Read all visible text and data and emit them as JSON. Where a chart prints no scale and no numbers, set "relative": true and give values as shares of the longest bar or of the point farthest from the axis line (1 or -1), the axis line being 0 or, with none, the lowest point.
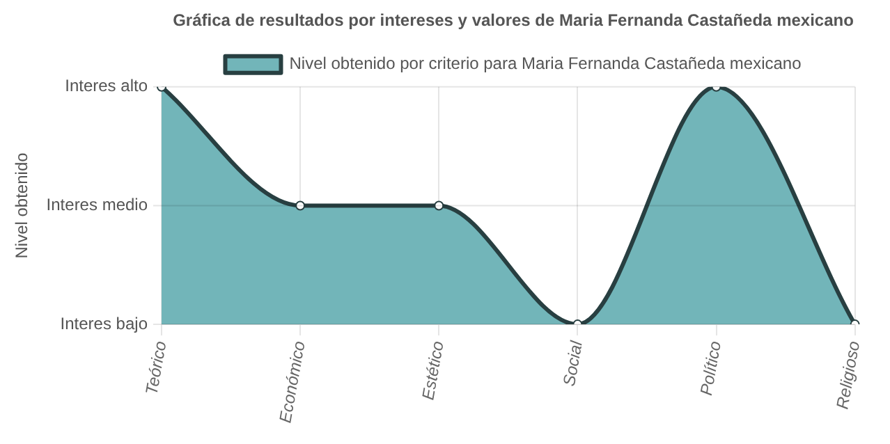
{
  "chart_data": {
    "type": "area",
    "title": "Gráfica de resultados por intereses y valores de Maria Fernanda Castañeda mexicano",
    "categories": [
      "Teórico",
      "Económico",
      "Estético",
      "Social",
      "Político",
      "Religioso"
    ],
    "series": [
      {
        "name": "Nivel obtenido por criterio para Maria Fernanda Castañeda mexicano",
        "color": "#72b5b9",
        "values": [
          1,
          0.5,
          0.5,
          0,
          1,
          0
        ]
      }
    ],
    "relative": true,
    "annotations": [
      "Interes bajo",
      "Interes medio",
      "Interes alto",
      "Nivel obtenido"
    ],
    "grid": true,
    "legend": "top",
    "marker": "circle",
    "line_style": "solid"
  }
}
